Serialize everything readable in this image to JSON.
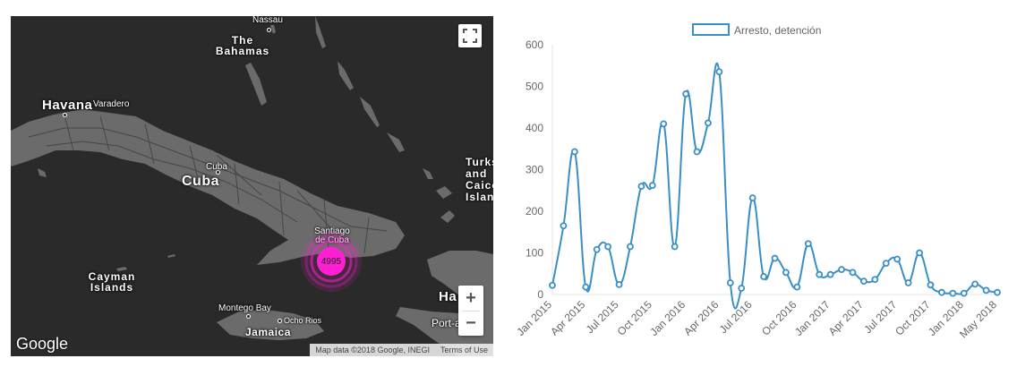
{
  "map": {
    "labels": {
      "nassau": "Nassau",
      "the_bahamas": "The Bahamas",
      "havana": "Havana",
      "varadero": "Varadero",
      "cuba_city": "Cuba",
      "cuba_country": "Cuba",
      "turks_caicos": "Turks and Caicos Islands",
      "santiago": "Santiago de Cuba",
      "cayman_islands": "Cayman Islands",
      "montego_bay": "Montego Bay",
      "ocho_rios": "Ocho Rios",
      "jamaica": "Jamaica",
      "haiti": "Ha",
      "port_au_prince": "Port-a-Pr"
    },
    "cluster": {
      "count": "4995",
      "color": "#ff1fd2"
    },
    "controls": {
      "zoom_in": "+",
      "zoom_out": "−",
      "fullscreen_icon": "fullscreen-icon"
    },
    "google_logo": "Google",
    "attribution": {
      "data": "Map data ©2018 Google, INEGI",
      "terms": "Terms of Use"
    },
    "colors": {
      "water": "#2a2a2a",
      "land": "#6b6b6b",
      "roads": "#3f3f3f"
    }
  },
  "chart_data": {
    "type": "line",
    "series": [
      {
        "name": "Arresto, detención",
        "color": "#3a8fc4",
        "values": [
          22,
          165,
          343,
          18,
          108,
          115,
          24,
          115,
          260,
          262,
          410,
          115,
          482,
          343,
          412,
          535,
          28,
          15,
          232,
          43,
          87,
          53,
          18,
          122,
          48,
          48,
          60,
          53,
          32,
          36,
          75,
          85,
          28,
          100,
          23,
          5,
          3,
          3,
          25,
          10,
          5
        ]
      }
    ],
    "x_tick_labels": [
      "Jan 2015",
      "Apr 2015",
      "Jul 2015",
      "Oct 2015",
      "Jan 2016",
      "Apr 2016",
      "Jul 2016",
      "Oct 2016",
      "Jan 2017",
      "Apr 2017",
      "Jul 2017",
      "Oct 2017",
      "Jan 2018",
      "May 2018"
    ],
    "y_ticks": [
      "0",
      "100",
      "200",
      "300",
      "400",
      "500",
      "600"
    ],
    "ylim": [
      0,
      600
    ],
    "legend_position": "top"
  }
}
